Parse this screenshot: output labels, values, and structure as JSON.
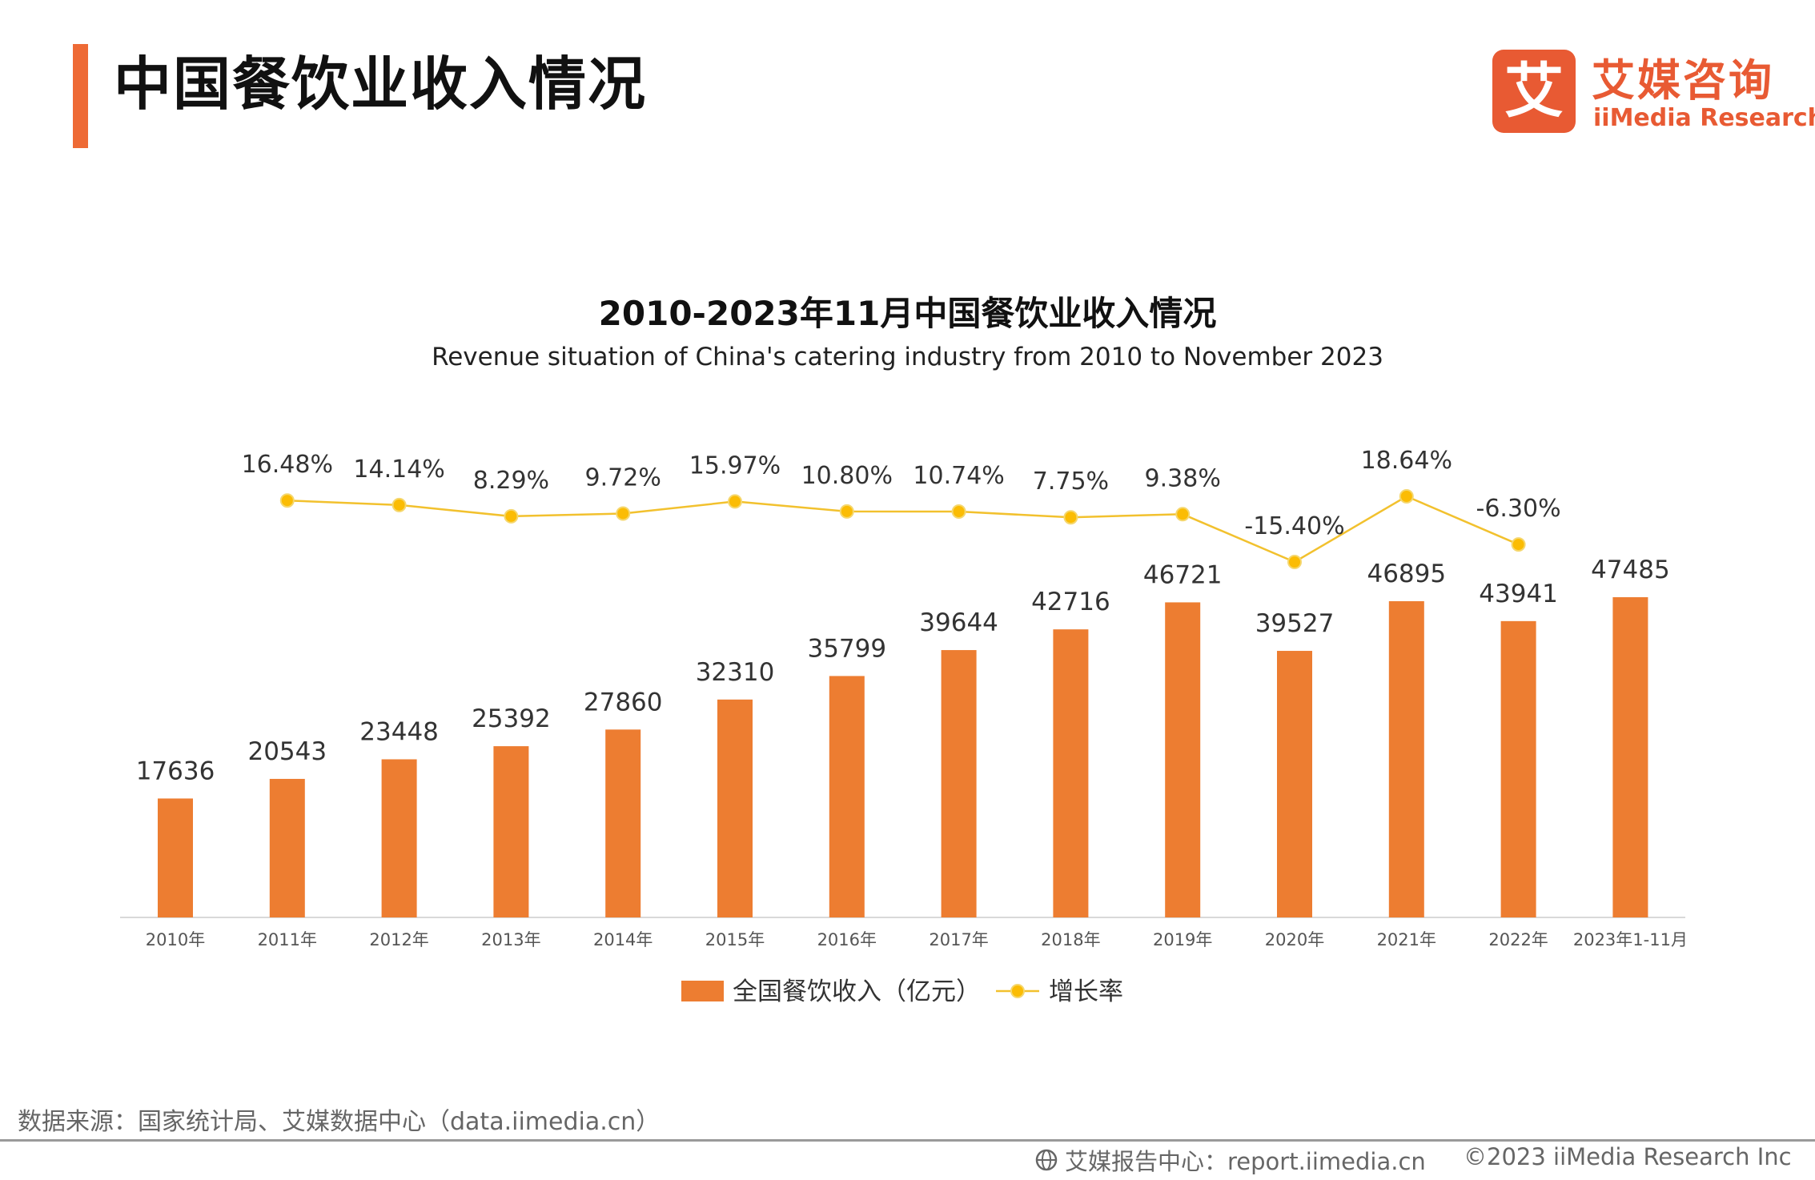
{
  "header": {
    "title": "中国餐饮业收入情况",
    "logo_mark": "艾",
    "logo_cn": "艾媒咨询",
    "logo_en": "iiMedia Research"
  },
  "chart_data": {
    "type": "bar",
    "title": "2010-2023年11月中国餐饮业收入情况",
    "subtitle": "Revenue situation of China's catering industry from 2010 to November 2023",
    "categories": [
      "2010年",
      "2011年",
      "2012年",
      "2013年",
      "2014年",
      "2015年",
      "2016年",
      "2017年",
      "2018年",
      "2019年",
      "2020年",
      "2021年",
      "2022年",
      "2023年1-11月"
    ],
    "series": [
      {
        "name": "全国餐饮收入（亿元）",
        "type": "bar",
        "values": [
          17636,
          20543,
          23448,
          25392,
          27860,
          32310,
          35799,
          39644,
          42716,
          46721,
          39527,
          46895,
          43941,
          47485
        ],
        "labels": [
          "17636",
          "20543",
          "23448",
          "25392",
          "27860",
          "32310",
          "35799",
          "39644",
          "42716",
          "46721",
          "39527",
          "46895",
          "43941",
          "47485"
        ]
      },
      {
        "name": "增长率",
        "type": "line",
        "values": [
          null,
          16.48,
          14.14,
          8.29,
          9.72,
          15.97,
          10.8,
          10.74,
          7.75,
          9.38,
          -15.4,
          18.64,
          -6.3,
          null
        ],
        "labels": [
          null,
          "16.48%",
          "14.14%",
          "8.29%",
          "9.72%",
          "15.97%",
          "10.80%",
          "10.74%",
          "7.75%",
          "9.38%",
          "-15.40%",
          "18.64%",
          "-6.30%",
          null
        ]
      }
    ],
    "bar_ylim": [
      0,
      47485
    ],
    "line_ylim": [
      -15.4,
      18.64
    ],
    "grid": false,
    "legend_position": "bottom-center",
    "colors": {
      "bar": "#ed7d31",
      "line": "#f2c12e",
      "marker": "#fbbc04",
      "axis": "#d9d9d9"
    }
  },
  "footer": {
    "source": "数据来源：国家统计局、艾媒数据中心（data.iimedia.cn）",
    "report_icon": "globe-icon",
    "report": "艾媒报告中心：report.iimedia.cn",
    "copyright": "©2023  iiMedia Research Inc"
  }
}
